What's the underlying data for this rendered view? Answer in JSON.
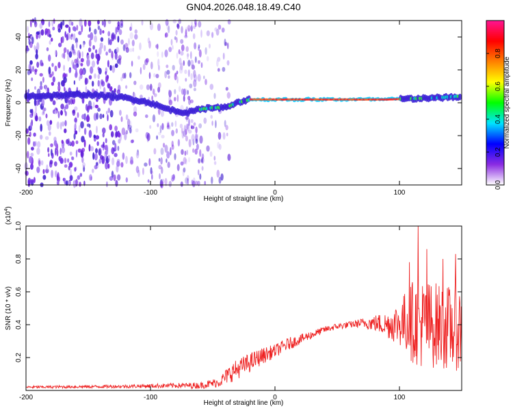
{
  "title": "GN04.2026.048.18.49.C40",
  "chart_data": [
    {
      "type": "heatmap",
      "name": "spectrogram",
      "xlabel": "Height of straight line (km)",
      "ylabel": "Frequency (Hz)",
      "xlim": [
        -200,
        150
      ],
      "ylim": [
        -50,
        50
      ],
      "xticks": [
        -200,
        -100,
        0,
        100
      ],
      "xtick_labels": [
        "-200",
        "-100",
        "0",
        "100"
      ],
      "yticks": [
        -40,
        -20,
        0,
        20,
        40
      ],
      "ytick_labels": [
        "-40",
        "-20",
        "0",
        "20",
        "40"
      ],
      "ridge": {
        "x": [
          -200,
          -150,
          -120,
          -100,
          -90,
          -80,
          -70,
          -60,
          -50,
          -40,
          -30,
          -20,
          0,
          50,
          90,
          110,
          130,
          150
        ],
        "freq": [
          4,
          5,
          3,
          0,
          -3,
          -5,
          -6,
          -4,
          -3,
          -3,
          0,
          2,
          2,
          2,
          2,
          2.5,
          3,
          4
        ]
      },
      "colorbar": {
        "label": "Normalized spectral amplitude",
        "range": [
          0,
          1
        ],
        "ticks": [
          0.0,
          0.2,
          0.4,
          0.6,
          0.8
        ],
        "tick_labels": [
          "0.0",
          "0.2",
          "0.4",
          "0.6",
          "0.8"
        ],
        "colors": [
          "#ffffff",
          "#8a2be2",
          "#0000ff",
          "#00e5ff",
          "#00ff00",
          "#ffff00",
          "#ff8000",
          "#ff0000",
          "#ff1493"
        ]
      }
    },
    {
      "type": "line",
      "name": "snr",
      "xlabel": "Height of straight line (km)",
      "ylabel": "SNR (10 * v/v)",
      "multiplier_label": "(x10",
      "multiplier_exp": "4",
      "multiplier_close": ")",
      "xlim": [
        -200,
        150
      ],
      "ylim": [
        0,
        1.0
      ],
      "xticks": [
        -200,
        -100,
        0,
        100
      ],
      "xtick_labels": [
        "-200",
        "-100",
        "0",
        "100"
      ],
      "yticks": [
        0.2,
        0.4,
        0.6,
        0.8,
        1.0
      ],
      "ytick_labels": [
        "0.2",
        "0.4",
        "0.6",
        "0.8",
        "1.0"
      ],
      "color": "#ee2222",
      "envelope": {
        "x": [
          -200,
          -120,
          -80,
          -60,
          -45,
          -35,
          -20,
          -10,
          0,
          10,
          20,
          30,
          40,
          50,
          60,
          70,
          80,
          90,
          100,
          110,
          120,
          130,
          140,
          150
        ],
        "mean": [
          0.02,
          0.025,
          0.03,
          0.03,
          0.05,
          0.11,
          0.17,
          0.21,
          0.24,
          0.28,
          0.31,
          0.34,
          0.37,
          0.39,
          0.4,
          0.41,
          0.41,
          0.4,
          0.41,
          0.42,
          0.4,
          0.4,
          0.38,
          0.38
        ],
        "spread": [
          0.008,
          0.01,
          0.015,
          0.02,
          0.03,
          0.06,
          0.06,
          0.05,
          0.04,
          0.04,
          0.03,
          0.025,
          0.02,
          0.02,
          0.02,
          0.03,
          0.05,
          0.08,
          0.14,
          0.25,
          0.28,
          0.26,
          0.26,
          0.26
        ]
      },
      "peaks": [
        {
          "x": 115,
          "y": 1.0
        },
        {
          "x": 122,
          "y": 0.86
        },
        {
          "x": 145,
          "y": 0.83
        },
        {
          "x": 135,
          "y": 0.8
        },
        {
          "x": 108,
          "y": 0.78
        }
      ]
    }
  ]
}
